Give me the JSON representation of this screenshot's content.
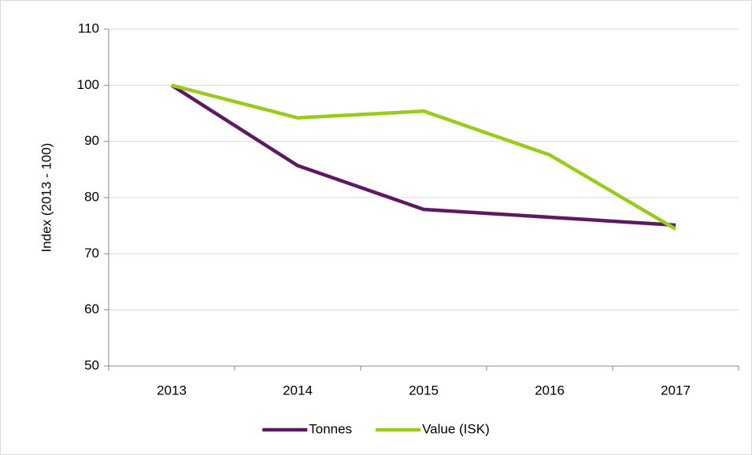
{
  "chart_data": {
    "type": "line",
    "y_label": "Index  (2013 - 100)",
    "categories": [
      "2013",
      "2014",
      "2015",
      "2016",
      "2017"
    ],
    "series": [
      {
        "name": "Tonnes",
        "color": "#5c1b60",
        "values": [
          100,
          85.7,
          77.9,
          76.5,
          75.1
        ]
      },
      {
        "name": "Value (ISK)",
        "color": "#99cc1a",
        "values": [
          100,
          94.2,
          95.4,
          87.6,
          74.4
        ]
      }
    ],
    "ylim": [
      50,
      110
    ],
    "yticks": [
      50,
      60,
      70,
      80,
      90,
      100,
      110
    ],
    "grid": true,
    "legend": "bottom"
  }
}
